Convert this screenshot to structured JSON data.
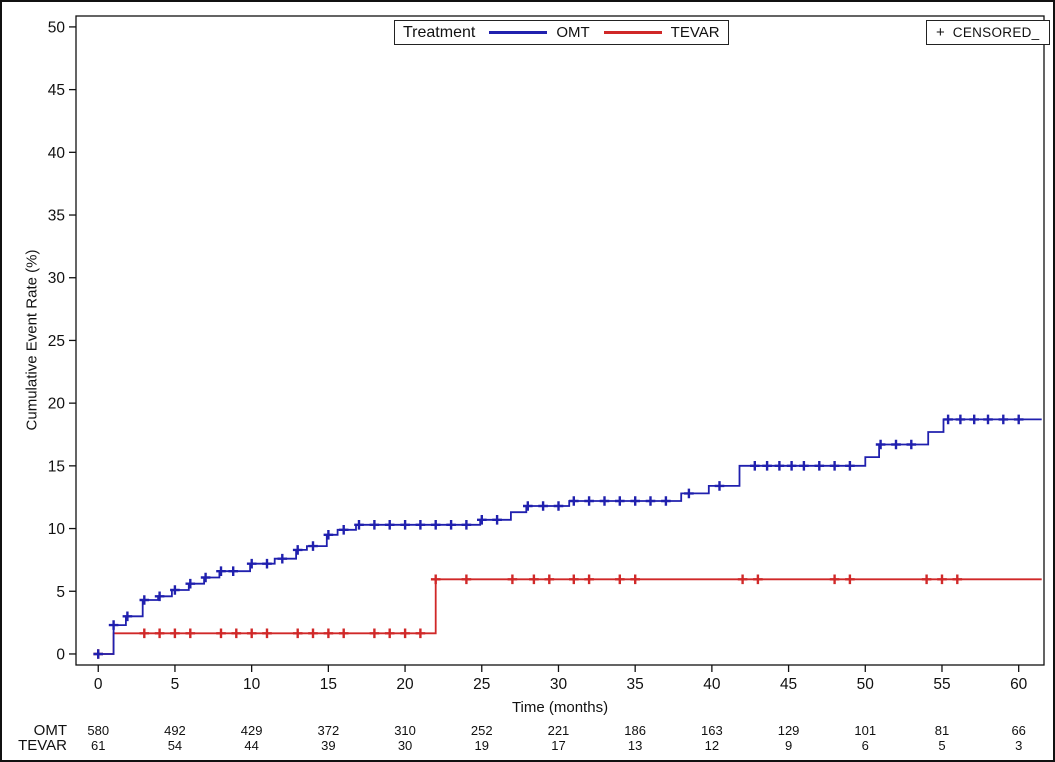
{
  "figure": {
    "background": "#ffffff",
    "border_color": "#111111"
  },
  "chart_data": {
    "type": "line",
    "subtype": "kaplan-meier-cumulative-incidence-steps",
    "title": "",
    "xlabel": "Time (months)",
    "ylabel": "Cumulative Event Rate (%)",
    "xlim": [
      -1.45,
      61.65
    ],
    "ylim": [
      -0.88,
      50.87
    ],
    "x_ticks": [
      0,
      5,
      10,
      15,
      20,
      25,
      30,
      35,
      40,
      45,
      50,
      55,
      60
    ],
    "y_ticks": [
      0,
      5,
      10,
      15,
      20,
      25,
      30,
      35,
      40,
      45,
      50
    ],
    "grid": false,
    "x_end": 61.5,
    "legend": {
      "title": "Treatment",
      "position": "top-center"
    },
    "censored_legend": {
      "marker": "+",
      "label": "CENSORED_",
      "position": "top-right"
    },
    "series": [
      {
        "name": "OMT",
        "color": "#2020AE",
        "steps": [
          [
            0,
            0
          ],
          [
            1,
            2.3
          ],
          [
            1.8,
            3.0
          ],
          [
            2.9,
            4.3
          ],
          [
            3.9,
            4.6
          ],
          [
            4.8,
            5.1
          ],
          [
            5.9,
            5.6
          ],
          [
            6.9,
            6.1
          ],
          [
            7.9,
            6.6
          ],
          [
            9.9,
            7.2
          ],
          [
            11.5,
            7.6
          ],
          [
            12.9,
            8.3
          ],
          [
            13.6,
            8.6
          ],
          [
            14.9,
            9.5
          ],
          [
            15.6,
            9.9
          ],
          [
            16.8,
            10.3
          ],
          [
            24.9,
            10.7
          ],
          [
            26.9,
            11.3
          ],
          [
            27.9,
            11.8
          ],
          [
            30.7,
            12.2
          ],
          [
            38,
            12.8
          ],
          [
            39.8,
            13.4
          ],
          [
            41.8,
            15.0
          ],
          [
            50,
            15.7
          ],
          [
            50.9,
            16.7
          ],
          [
            54.1,
            17.7
          ],
          [
            55.1,
            18.7
          ]
        ],
        "censor_times": [
          0,
          1,
          1.9,
          3,
          4,
          5,
          6,
          7,
          8,
          8.8,
          10,
          11,
          12,
          13,
          14,
          15,
          16,
          17,
          18,
          19,
          20,
          21,
          22,
          23,
          24,
          25,
          26,
          28,
          29,
          30,
          31,
          32,
          33,
          34,
          35,
          36,
          37,
          38.5,
          40.5,
          42.8,
          43.6,
          44.4,
          45.2,
          46,
          47,
          48,
          49,
          51,
          52,
          53,
          55.4,
          56.2,
          57.1,
          58,
          59,
          60
        ]
      },
      {
        "name": "TEVAR",
        "color": "#D02828",
        "steps": [
          [
            0,
            0
          ],
          [
            1,
            1.65
          ],
          [
            22,
            5.95
          ]
        ],
        "censor_times": [
          0,
          3,
          4,
          5,
          6,
          8,
          9,
          10,
          11,
          13,
          14,
          15,
          16,
          18,
          19,
          20,
          21,
          22,
          24,
          27,
          28.4,
          29.4,
          31,
          32,
          34,
          35,
          42,
          43,
          48,
          49,
          54,
          55,
          56
        ]
      }
    ],
    "at_risk_table": {
      "times": [
        0,
        5,
        10,
        15,
        20,
        25,
        30,
        35,
        40,
        45,
        50,
        55,
        60
      ],
      "rows": [
        {
          "label": "OMT",
          "counts": [
            580,
            492,
            429,
            372,
            310,
            252,
            221,
            186,
            163,
            129,
            101,
            81,
            66
          ]
        },
        {
          "label": "TEVAR",
          "counts": [
            61,
            54,
            44,
            39,
            30,
            19,
            17,
            13,
            12,
            9,
            6,
            5,
            3
          ]
        }
      ]
    }
  }
}
